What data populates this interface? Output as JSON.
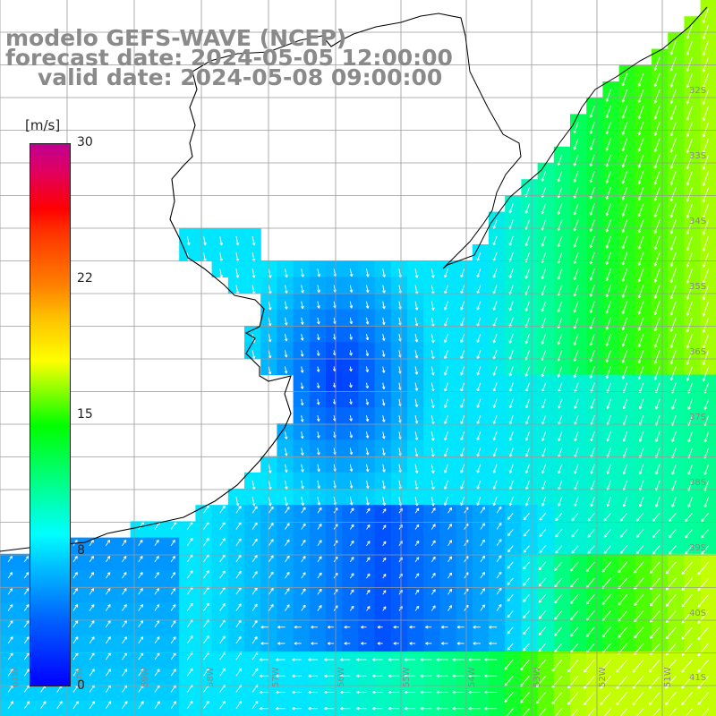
{
  "title": {
    "line1": "modelo GEFS-WAVE (NCEP)",
    "line2": "forecast date: 2024-05-05 12:00:00",
    "line3": "valid date: 2024-05-08 09:00:00"
  },
  "colorbar": {
    "unit": "[m/s]",
    "ticks": [
      "30",
      "22",
      "15",
      "8",
      "0"
    ],
    "min_value": 0,
    "max_value": 30
  },
  "map": {
    "lat_labels": [
      "32S",
      "33S",
      "34S",
      "35S",
      "36S",
      "37S",
      "38S",
      "39S",
      "40S",
      "41S"
    ],
    "lon_labels": [
      "61W",
      "60W",
      "59W",
      "58W",
      "57W",
      "56W",
      "55W",
      "54W",
      "53W",
      "52W",
      "51W"
    ],
    "colors": {
      "land": "#ffffff",
      "grid": "#9a9a9a",
      "coast": "#000000",
      "arrow": "#ffffff"
    }
  }
}
